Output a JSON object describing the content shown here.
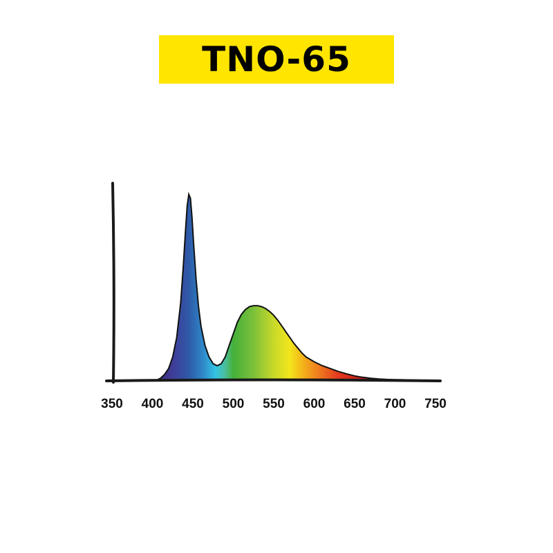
{
  "title": "TNO-65",
  "colors": {
    "banner": "#FFE500",
    "axis": "#1a1a1a",
    "outline": "#111111"
  },
  "chart_data": {
    "type": "area",
    "title": "TNO-65",
    "xlabel": "",
    "ylabel": "",
    "xlim": [
      350,
      750
    ],
    "ylim": [
      0,
      1
    ],
    "grid": false,
    "legend": "none",
    "x_ticks": [
      350,
      400,
      450,
      500,
      550,
      600,
      650,
      700,
      750
    ],
    "series": [
      {
        "x": [
          405,
          410,
          415,
          420,
          425,
          430,
          435,
          438,
          441,
          443,
          445,
          447,
          449,
          451,
          454,
          457,
          460,
          465,
          470,
          475,
          480,
          485,
          490,
          495,
          500,
          505,
          510,
          515,
          520,
          525,
          530,
          535,
          540,
          545,
          550,
          555,
          560,
          565,
          570,
          575,
          580,
          585,
          590,
          600,
          610,
          620,
          630,
          640,
          650,
          660,
          670,
          680,
          690,
          700,
          710,
          720,
          730
        ],
        "values": [
          0.0,
          0.01,
          0.03,
          0.06,
          0.12,
          0.22,
          0.4,
          0.58,
          0.78,
          0.9,
          0.96,
          0.94,
          0.84,
          0.7,
          0.52,
          0.38,
          0.28,
          0.18,
          0.12,
          0.085,
          0.075,
          0.085,
          0.12,
          0.18,
          0.24,
          0.3,
          0.34,
          0.365,
          0.38,
          0.385,
          0.385,
          0.38,
          0.37,
          0.355,
          0.335,
          0.31,
          0.28,
          0.25,
          0.22,
          0.19,
          0.165,
          0.14,
          0.12,
          0.095,
          0.075,
          0.06,
          0.045,
          0.033,
          0.022,
          0.015,
          0.01,
          0.006,
          0.004,
          0.003,
          0.002,
          0.001,
          0.0
        ]
      }
    ]
  }
}
